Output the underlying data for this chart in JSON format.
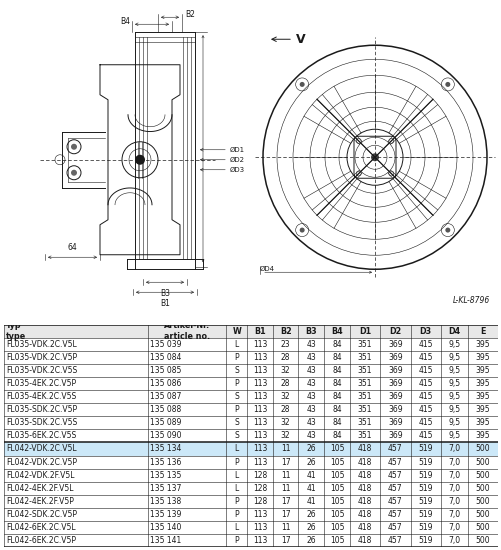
{
  "drawing_label": "L-KL-8796",
  "dim_V": "V",
  "dim_B2": "B2",
  "dim_B4": "B4",
  "dim_B3": "B3",
  "dim_B1": "B1",
  "dim_D1": "ØD1",
  "dim_D2": "ØD2",
  "dim_D3": "ØD3",
  "dim_D4": "ØD4",
  "header": [
    "Typ\ntype",
    "Artikel-Nr.\narticle no.",
    "W",
    "B1",
    "B2",
    "B3",
    "B4",
    "D1",
    "D2",
    "D3",
    "D4",
    "E"
  ],
  "rows": [
    [
      "FL035-VDK.2C.V5L",
      "135 039",
      "L",
      "113",
      "23",
      "43",
      "84",
      "351",
      "369",
      "415",
      "9,5",
      "395"
    ],
    [
      "FL035-VDK.2C.V5P",
      "135 084",
      "P",
      "113",
      "28",
      "43",
      "84",
      "351",
      "369",
      "415",
      "9,5",
      "395"
    ],
    [
      "FL035-VDK.2C.V5S",
      "135 085",
      "S",
      "113",
      "32",
      "43",
      "84",
      "351",
      "369",
      "415",
      "9,5",
      "395"
    ],
    [
      "FL035-4EK.2C.V5P",
      "135 086",
      "P",
      "113",
      "28",
      "43",
      "84",
      "351",
      "369",
      "415",
      "9,5",
      "395"
    ],
    [
      "FL035-4EK.2C.V5S",
      "135 087",
      "S",
      "113",
      "32",
      "43",
      "84",
      "351",
      "369",
      "415",
      "9,5",
      "395"
    ],
    [
      "FL035-SDK.2C.V5P",
      "135 088",
      "P",
      "113",
      "28",
      "43",
      "84",
      "351",
      "369",
      "415",
      "9,5",
      "395"
    ],
    [
      "FL035-SDK.2C.V5S",
      "135 089",
      "S",
      "113",
      "32",
      "43",
      "84",
      "351",
      "369",
      "415",
      "9,5",
      "395"
    ],
    [
      "FL035-6EK.2C.V5S",
      "135 090",
      "S",
      "113",
      "32",
      "43",
      "84",
      "351",
      "369",
      "415",
      "9,5",
      "395"
    ],
    [
      "FL042-VDK.2C.V5L",
      "135 134",
      "L",
      "113",
      "11",
      "26",
      "105",
      "418",
      "457",
      "519",
      "7,0",
      "500"
    ],
    [
      "FL042-VDK.2C.V5P",
      "135 136",
      "P",
      "113",
      "17",
      "26",
      "105",
      "418",
      "457",
      "519",
      "7,0",
      "500"
    ],
    [
      "FL042-VDK.2F.V5L",
      "135 135",
      "L",
      "128",
      "11",
      "41",
      "105",
      "418",
      "457",
      "519",
      "7,0",
      "500"
    ],
    [
      "FL042-4EK.2F.V5L",
      "135 137",
      "L",
      "128",
      "11",
      "41",
      "105",
      "418",
      "457",
      "519",
      "7,0",
      "500"
    ],
    [
      "FL042-4EK.2F.V5P",
      "135 138",
      "P",
      "128",
      "17",
      "41",
      "105",
      "418",
      "457",
      "519",
      "7,0",
      "500"
    ],
    [
      "FL042-SDK.2C.V5P",
      "135 139",
      "P",
      "113",
      "17",
      "26",
      "105",
      "418",
      "457",
      "519",
      "7,0",
      "500"
    ],
    [
      "FL042-6EK.2C.V5L",
      "135 140",
      "L",
      "113",
      "11",
      "26",
      "105",
      "418",
      "457",
      "519",
      "7,0",
      "500"
    ],
    [
      "FL042-6EK.2C.V5P",
      "135 141",
      "P",
      "113",
      "17",
      "26",
      "105",
      "418",
      "457",
      "519",
      "7,0",
      "500"
    ]
  ],
  "highlight_row": 8,
  "highlight_color": "#cce8f8",
  "separator_after_row": 7,
  "col_widths": [
    1.52,
    0.82,
    0.22,
    0.27,
    0.27,
    0.27,
    0.27,
    0.32,
    0.32,
    0.32,
    0.28,
    0.32
  ],
  "bg_color": "#ffffff",
  "line_color": "#1a1a1a",
  "text_color": "#1a1a1a"
}
